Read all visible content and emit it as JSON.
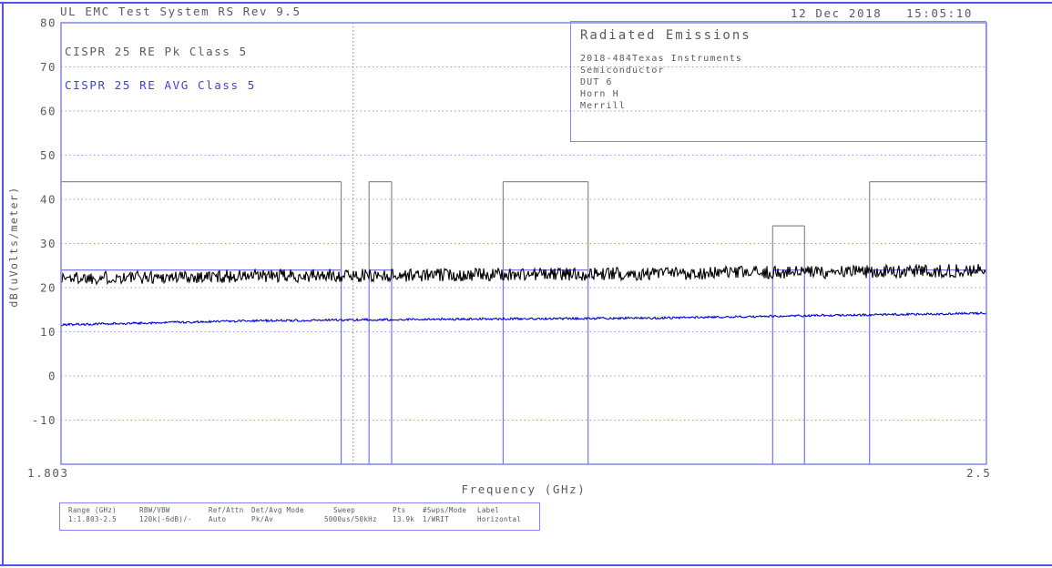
{
  "header": {
    "title": "UL EMC Test System RS Rev 9.5",
    "date": "12 Dec 2018",
    "time": "15:05:10"
  },
  "info_box": {
    "title": "Radiated Emissions",
    "lines": [
      "2018-484Texas Instruments",
      "Semiconductor",
      "DUT 6",
      "Horn H",
      "Merrill"
    ]
  },
  "axes": {
    "y_label": "dB(uVolts/meter)",
    "x_label": "Frequency (GHz)",
    "x_min_label": "1.803",
    "x_max_label": "2.5"
  },
  "settings_table": {
    "columns": [
      {
        "header": "Range (GHz)",
        "value": "1:1.803-2.5"
      },
      {
        "header": "RBW/VBW",
        "value": "120k(-6dB)/-"
      },
      {
        "header": "Ref/Attn",
        "value": "Auto"
      },
      {
        "header": "Det/Avg Mode",
        "value": "Pk/Av"
      },
      {
        "header": "Sweep",
        "value": "5000us/50kHz"
      },
      {
        "header": "Pts",
        "value": "13.9k"
      },
      {
        "header": "#Swps/Mode",
        "value": "1/WRIT"
      },
      {
        "header": "Label",
        "value": "Horizontal"
      }
    ]
  },
  "colors": {
    "outer_border": "#5353e8",
    "plot_border": "#8484f2",
    "grid_blue": "#9a9af5",
    "band_blue": "#7575ee",
    "marker_blue": "#7d7df0",
    "mask_gray": "#8a8a8a",
    "pk_trace": "#000000",
    "avg_trace": "#0000d8",
    "text_gray": "#5a5a5a",
    "text_blue": "#3d3dfa"
  },
  "chart_data": {
    "type": "line",
    "title": "Radiated Emissions",
    "xlabel": "Frequency (GHz)",
    "ylabel": "dB(uVolts/meter)",
    "xlim": [
      1.803,
      2.5
    ],
    "ylim": [
      -20,
      80
    ],
    "y_ticks": [
      80,
      70,
      60,
      50,
      40,
      30,
      20,
      10,
      0,
      -10
    ],
    "grid": "horizontal-dotted",
    "legend_position": "top-left-inside",
    "marker_freq_ghz": 2.023,
    "limit_bands": [
      {
        "f_start": 1.803,
        "f_stop": 2.014,
        "peak_limit_db": 44,
        "avg_limit_db": 24
      },
      {
        "f_start": 2.035,
        "f_stop": 2.052,
        "peak_limit_db": 44,
        "avg_limit_db": 24
      },
      {
        "f_start": 2.136,
        "f_stop": 2.2,
        "peak_limit_db": 44,
        "avg_limit_db": 24
      },
      {
        "f_start": 2.339,
        "f_stop": 2.363,
        "peak_limit_db": 34,
        "avg_limit_db": 24
      },
      {
        "f_start": 2.412,
        "f_stop": 2.5,
        "peak_limit_db": 44,
        "avg_limit_db": 24
      }
    ],
    "series": [
      {
        "name": "CISPR 25 RE Pk Class 5",
        "color": "#000000",
        "noise_db": 1.5,
        "waypoints": [
          [
            1.803,
            22.2
          ],
          [
            1.95,
            22.6
          ],
          [
            2.1,
            22.9
          ],
          [
            2.25,
            23.2
          ],
          [
            2.4,
            23.6
          ],
          [
            2.5,
            23.9
          ]
        ]
      },
      {
        "name": "CISPR 25 RE AVG Class 5",
        "color": "#0000d8",
        "noise_db": 0.25,
        "waypoints": [
          [
            1.803,
            11.6
          ],
          [
            1.95,
            12.5
          ],
          [
            2.1,
            12.9
          ],
          [
            2.25,
            13.1
          ],
          [
            2.35,
            13.6
          ],
          [
            2.5,
            14.2
          ]
        ]
      }
    ]
  }
}
